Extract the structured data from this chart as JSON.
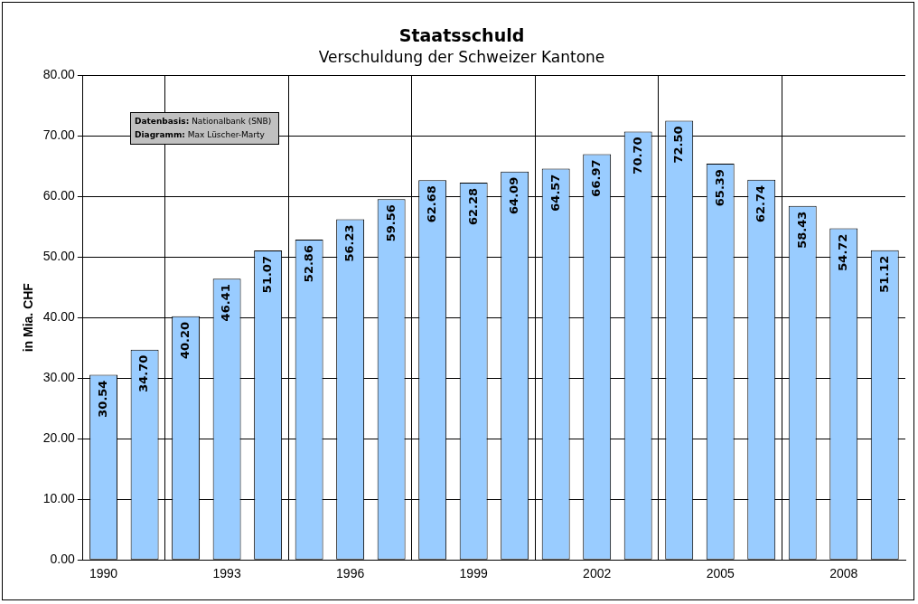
{
  "chart_data": {
    "type": "bar",
    "title": "Staatsschuld",
    "subtitle": "Verschuldung der Schweizer Kantone",
    "ylabel": "in Mia. CHF",
    "categories": [
      "1990",
      null,
      null,
      "1993",
      null,
      null,
      "1996",
      null,
      null,
      "1999",
      null,
      null,
      "2002",
      null,
      null,
      "2005",
      null,
      null,
      "2008",
      null
    ],
    "values": [
      30.54,
      34.7,
      40.2,
      46.41,
      51.07,
      52.86,
      56.23,
      59.56,
      62.68,
      62.28,
      64.09,
      64.57,
      66.97,
      70.7,
      72.5,
      65.39,
      62.74,
      58.43,
      54.72,
      51.12
    ],
    "value_labels": [
      "30.54",
      "34.70",
      "40.20",
      "46.41",
      "51.07",
      "52.86",
      "56.23",
      "59.56",
      "62.68",
      "62.28",
      "64.09",
      "64.57",
      "66.97",
      "70.70",
      "72.50",
      "65.39",
      "62.74",
      "58.43",
      "54.72",
      "51.12"
    ],
    "color": "#99ccff",
    "ylim": [
      0,
      80
    ],
    "yticks": [
      {
        "value": 0,
        "label": "0.00"
      },
      {
        "value": 10,
        "label": "10.00"
      },
      {
        "value": 20,
        "label": "20.00"
      },
      {
        "value": 30,
        "label": "30.00"
      },
      {
        "value": 40,
        "label": "40.00"
      },
      {
        "value": 50,
        "label": "50.00"
      },
      {
        "value": 60,
        "label": "60.00"
      },
      {
        "value": 70,
        "label": "70.00"
      },
      {
        "value": 80,
        "label": "80.00"
      }
    ],
    "grid": true,
    "legend": false,
    "annotations": [
      "Datenbasis: Nationalbank (SNB)",
      "Diagramm: Max Lüscher-Marty"
    ]
  }
}
